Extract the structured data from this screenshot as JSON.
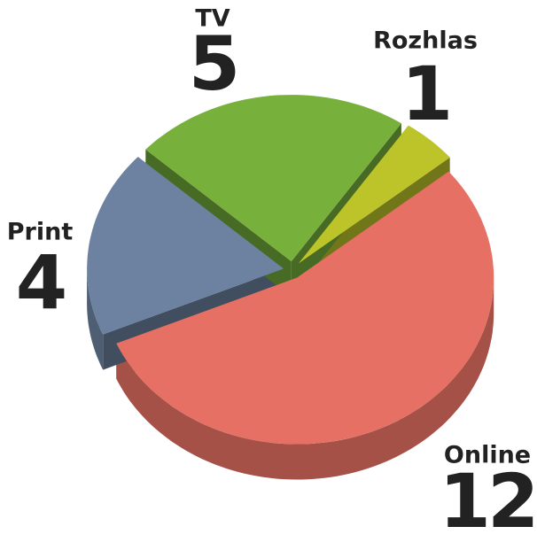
{
  "chart_data": {
    "type": "pie",
    "categories": [
      "Rozhlas",
      "Online",
      "Print",
      "TV"
    ],
    "values": [
      1,
      12,
      4,
      5
    ],
    "colors": [
      "#bcc42a",
      "#e57063",
      "#6c82a0",
      "#77b13c"
    ]
  }
}
